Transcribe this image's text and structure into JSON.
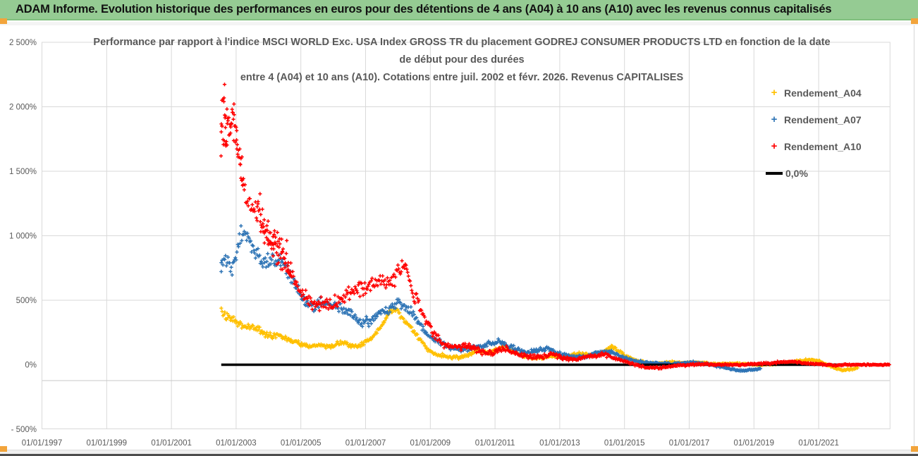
{
  "header": {
    "title": "ADAM Informe. Evolution historique des performances en euros pour des détentions de 4 ans (A04) à 10 ans (A10) avec les revenus connus capitalisés"
  },
  "colors": {
    "banner_green": "#95CB93",
    "grid": "#D9D9D9",
    "axis_extra_line": "#C8C8C8",
    "text_gray": "#595959",
    "accent_orange": "#F2A43B",
    "series_a04": "#FFC000",
    "series_a07": "#2E74B5",
    "series_a10": "#FF0000",
    "zero_line": "#000000"
  },
  "chart_data": {
    "type": "scatter",
    "title_line1": "Performance par rapport à l'indice MSCI WORLD Exc. USA Index GROSS TR  du placement GODREJ CONSUMER PRODUCTS LTD en fonction de la date",
    "title_line2": "de début pour des durées",
    "title_line3": "entre 4 (A04) et 10 ans (A10). Cotations entre juil. 2002 et févr. 2026. Revenus CAPITALISES",
    "x_axis": {
      "tick_years": [
        1997,
        1999,
        2001,
        2003,
        2005,
        2007,
        2009,
        2011,
        2013,
        2015,
        2017,
        2019,
        2021
      ],
      "tick_labels": [
        "01/01/1997",
        "01/01/1999",
        "01/01/2001",
        "01/01/2003",
        "01/01/2005",
        "01/01/2007",
        "01/01/2009",
        "01/01/2011",
        "01/01/2013",
        "01/01/2015",
        "01/01/2017",
        "01/01/2019",
        "01/01/2021"
      ],
      "min_year": 1997,
      "max_year": 2023.3,
      "grid": true
    },
    "y_axis": {
      "tick_values": [
        2500,
        2000,
        1500,
        1000,
        500,
        0,
        -500
      ],
      "tick_labels": [
        "2 500%",
        "2 000%",
        "1 500%",
        "1 000%",
        "500%",
        "0%",
        "- 500%"
      ],
      "min": -500,
      "max": 2500,
      "grid": true
    },
    "legend_position": "top-right",
    "zero_line": {
      "label": "0,0%",
      "value": 0,
      "x_start": 2002.54,
      "x_end": 2023.2
    },
    "series": [
      {
        "name": "Rendement_A04",
        "color": "#FFC000",
        "marker": "+",
        "keypoints": [
          [
            2002.54,
            430,
            45
          ],
          [
            2002.65,
            400,
            40
          ],
          [
            2002.8,
            370,
            35
          ],
          [
            2002.95,
            340,
            35
          ],
          [
            2003.1,
            310,
            30
          ],
          [
            2003.3,
            290,
            30
          ],
          [
            2003.5,
            300,
            30
          ],
          [
            2003.7,
            270,
            28
          ],
          [
            2003.9,
            240,
            26
          ],
          [
            2004.1,
            225,
            24
          ],
          [
            2004.3,
            230,
            24
          ],
          [
            2004.5,
            210,
            22
          ],
          [
            2004.7,
            190,
            22
          ],
          [
            2004.9,
            170,
            20
          ],
          [
            2005.1,
            150,
            18
          ],
          [
            2005.3,
            140,
            18
          ],
          [
            2005.5,
            150,
            18
          ],
          [
            2005.7,
            145,
            18
          ],
          [
            2005.9,
            135,
            16
          ],
          [
            2006.1,
            160,
            18
          ],
          [
            2006.3,
            180,
            18
          ],
          [
            2006.5,
            150,
            16
          ],
          [
            2006.7,
            140,
            16
          ],
          [
            2006.9,
            160,
            18
          ],
          [
            2007.1,
            200,
            20
          ],
          [
            2007.3,
            240,
            22
          ],
          [
            2007.5,
            300,
            25
          ],
          [
            2007.7,
            380,
            30
          ],
          [
            2007.85,
            430,
            30
          ],
          [
            2008.0,
            420,
            30
          ],
          [
            2008.2,
            350,
            28
          ],
          [
            2008.4,
            290,
            26
          ],
          [
            2008.6,
            220,
            24
          ],
          [
            2008.8,
            150,
            20
          ],
          [
            2009.0,
            100,
            18
          ],
          [
            2009.3,
            75,
            15
          ],
          [
            2009.6,
            60,
            14
          ],
          [
            2009.9,
            55,
            13
          ],
          [
            2010.2,
            80,
            14
          ],
          [
            2010.5,
            110,
            15
          ],
          [
            2010.8,
            90,
            14
          ],
          [
            2011.1,
            120,
            15
          ],
          [
            2011.3,
            140,
            15
          ],
          [
            2011.6,
            95,
            13
          ],
          [
            2011.9,
            65,
            12
          ],
          [
            2012.2,
            50,
            11
          ],
          [
            2012.5,
            55,
            11
          ],
          [
            2012.8,
            70,
            12
          ],
          [
            2013.1,
            60,
            11
          ],
          [
            2013.4,
            75,
            12
          ],
          [
            2013.7,
            90,
            12
          ],
          [
            2014.0,
            75,
            11
          ],
          [
            2014.3,
            95,
            12
          ],
          [
            2014.6,
            140,
            14
          ],
          [
            2014.8,
            110,
            12
          ],
          [
            2015.1,
            60,
            10
          ],
          [
            2015.4,
            30,
            9
          ],
          [
            2015.7,
            15,
            8
          ],
          [
            2016.0,
            10,
            8
          ],
          [
            2016.4,
            20,
            8
          ],
          [
            2016.8,
            15,
            7
          ],
          [
            2017.2,
            20,
            7
          ],
          [
            2017.6,
            10,
            7
          ],
          [
            2018.0,
            5,
            7
          ],
          [
            2018.4,
            10,
            7
          ],
          [
            2018.8,
            5,
            6
          ],
          [
            2019.2,
            0,
            6
          ],
          [
            2019.6,
            5,
            6
          ],
          [
            2020.0,
            15,
            7
          ],
          [
            2020.4,
            30,
            8
          ],
          [
            2020.8,
            40,
            8
          ],
          [
            2021.1,
            20,
            7
          ],
          [
            2021.4,
            -15,
            7
          ],
          [
            2021.7,
            -40,
            8
          ],
          [
            2022.0,
            -35,
            7
          ],
          [
            2022.2,
            -25,
            6
          ]
        ]
      },
      {
        "name": "Rendement_A07",
        "color": "#2E74B5",
        "marker": "+",
        "keypoints": [
          [
            2002.54,
            820,
            90
          ],
          [
            2002.7,
            780,
            70
          ],
          [
            2002.85,
            730,
            60
          ],
          [
            2003.0,
            870,
            80
          ],
          [
            2003.15,
            1000,
            60
          ],
          [
            2003.25,
            1030,
            50
          ],
          [
            2003.4,
            950,
            60
          ],
          [
            2003.55,
            900,
            60
          ],
          [
            2003.7,
            850,
            60
          ],
          [
            2003.85,
            800,
            60
          ],
          [
            2004.0,
            790,
            60
          ],
          [
            2004.15,
            820,
            60
          ],
          [
            2004.3,
            800,
            60
          ],
          [
            2004.5,
            760,
            60
          ],
          [
            2004.65,
            700,
            50
          ],
          [
            2004.8,
            640,
            50
          ],
          [
            2005.0,
            540,
            45
          ],
          [
            2005.2,
            470,
            40
          ],
          [
            2005.4,
            450,
            40
          ],
          [
            2005.6,
            470,
            40
          ],
          [
            2005.8,
            480,
            40
          ],
          [
            2006.0,
            460,
            40
          ],
          [
            2006.2,
            440,
            40
          ],
          [
            2006.45,
            410,
            40
          ],
          [
            2006.7,
            360,
            35
          ],
          [
            2006.9,
            330,
            35
          ],
          [
            2007.1,
            340,
            35
          ],
          [
            2007.35,
            380,
            40
          ],
          [
            2007.6,
            420,
            40
          ],
          [
            2007.85,
            450,
            40
          ],
          [
            2008.05,
            480,
            40
          ],
          [
            2008.25,
            440,
            40
          ],
          [
            2008.5,
            380,
            35
          ],
          [
            2008.7,
            300,
            35
          ],
          [
            2008.9,
            240,
            30
          ],
          [
            2009.1,
            200,
            30
          ],
          [
            2009.4,
            160,
            25
          ],
          [
            2009.7,
            130,
            25
          ],
          [
            2010.0,
            120,
            22
          ],
          [
            2010.3,
            140,
            22
          ],
          [
            2010.6,
            150,
            22
          ],
          [
            2010.9,
            170,
            22
          ],
          [
            2011.15,
            185,
            22
          ],
          [
            2011.4,
            150,
            20
          ],
          [
            2011.7,
            115,
            20
          ],
          [
            2012.0,
            95,
            18
          ],
          [
            2012.3,
            110,
            18
          ],
          [
            2012.6,
            125,
            18
          ],
          [
            2012.9,
            95,
            16
          ],
          [
            2013.2,
            75,
            15
          ],
          [
            2013.5,
            60,
            14
          ],
          [
            2013.8,
            70,
            14
          ],
          [
            2014.1,
            85,
            15
          ],
          [
            2014.4,
            110,
            15
          ],
          [
            2014.7,
            90,
            14
          ],
          [
            2015.0,
            55,
            12
          ],
          [
            2015.3,
            30,
            10
          ],
          [
            2015.6,
            20,
            10
          ],
          [
            2015.9,
            15,
            9
          ],
          [
            2016.2,
            10,
            9
          ],
          [
            2016.5,
            5,
            8
          ],
          [
            2016.8,
            15,
            8
          ],
          [
            2017.1,
            20,
            8
          ],
          [
            2017.4,
            10,
            8
          ],
          [
            2017.7,
            0,
            8
          ],
          [
            2018.0,
            -20,
            8
          ],
          [
            2018.3,
            -35,
            8
          ],
          [
            2018.6,
            -45,
            8
          ],
          [
            2018.9,
            -40,
            8
          ],
          [
            2019.1,
            -35,
            7
          ],
          [
            2019.2,
            -30,
            6
          ]
        ]
      },
      {
        "name": "Rendement_A10",
        "color": "#FF0000",
        "marker": "+",
        "keypoints": [
          [
            2002.54,
            1800,
            250
          ],
          [
            2002.62,
            1900,
            220
          ],
          [
            2002.7,
            1850,
            180
          ],
          [
            2002.8,
            1800,
            150
          ],
          [
            2002.9,
            1880,
            120
          ],
          [
            2003.0,
            1800,
            150
          ],
          [
            2003.1,
            1600,
            120
          ],
          [
            2003.2,
            1450,
            100
          ],
          [
            2003.35,
            1270,
            60
          ],
          [
            2003.5,
            1220,
            70
          ],
          [
            2003.65,
            1180,
            90
          ],
          [
            2003.8,
            1100,
            120
          ],
          [
            2003.95,
            1000,
            100
          ],
          [
            2004.1,
            950,
            90
          ],
          [
            2004.3,
            880,
            110
          ],
          [
            2004.5,
            830,
            120
          ],
          [
            2004.7,
            700,
            90
          ],
          [
            2004.9,
            600,
            70
          ],
          [
            2005.1,
            520,
            60
          ],
          [
            2005.4,
            480,
            60
          ],
          [
            2005.7,
            470,
            50
          ],
          [
            2006.0,
            470,
            50
          ],
          [
            2006.3,
            520,
            50
          ],
          [
            2006.6,
            560,
            60
          ],
          [
            2006.9,
            600,
            60
          ],
          [
            2007.2,
            640,
            60
          ],
          [
            2007.5,
            660,
            60
          ],
          [
            2007.8,
            640,
            60
          ],
          [
            2008.0,
            700,
            70
          ],
          [
            2008.15,
            760,
            60
          ],
          [
            2008.3,
            700,
            60
          ],
          [
            2008.5,
            560,
            60
          ],
          [
            2008.7,
            430,
            50
          ],
          [
            2008.9,
            330,
            40
          ],
          [
            2009.1,
            240,
            40
          ],
          [
            2009.35,
            170,
            35
          ],
          [
            2009.6,
            140,
            30
          ],
          [
            2009.9,
            130,
            30
          ],
          [
            2010.2,
            150,
            30
          ],
          [
            2010.5,
            110,
            25
          ],
          [
            2010.8,
            90,
            25
          ],
          [
            2011.1,
            110,
            25
          ],
          [
            2011.35,
            130,
            25
          ],
          [
            2011.6,
            90,
            20
          ],
          [
            2011.9,
            70,
            20
          ],
          [
            2012.2,
            60,
            18
          ],
          [
            2012.5,
            65,
            18
          ],
          [
            2012.8,
            80,
            18
          ],
          [
            2013.1,
            50,
            15
          ],
          [
            2013.4,
            40,
            15
          ],
          [
            2013.7,
            55,
            15
          ],
          [
            2014.0,
            65,
            15
          ],
          [
            2014.3,
            85,
            18
          ],
          [
            2014.6,
            60,
            15
          ],
          [
            2014.9,
            35,
            12
          ],
          [
            2015.2,
            10,
            10
          ],
          [
            2015.5,
            -10,
            10
          ],
          [
            2015.8,
            -25,
            10
          ],
          [
            2016.1,
            -20,
            10
          ],
          [
            2016.4,
            -15,
            8
          ],
          [
            2016.7,
            -5,
            8
          ],
          [
            2017.0,
            0,
            8
          ],
          [
            2017.5,
            5,
            8
          ],
          [
            2018.0,
            0,
            7
          ],
          [
            2018.5,
            0,
            7
          ],
          [
            2019.0,
            5,
            7
          ],
          [
            2019.5,
            10,
            8
          ],
          [
            2019.8,
            20,
            8
          ],
          [
            2020.2,
            25,
            8
          ],
          [
            2020.6,
            10,
            7
          ],
          [
            2021.0,
            5,
            6
          ],
          [
            2021.5,
            -5,
            6
          ],
          [
            2022.0,
            0,
            5
          ],
          [
            2022.5,
            0,
            5
          ],
          [
            2023.0,
            0,
            5
          ],
          [
            2023.2,
            0,
            4
          ]
        ]
      }
    ]
  },
  "legend": {
    "items": [
      {
        "label": "Rendement_A04",
        "marker": "+",
        "color": "#FFC000"
      },
      {
        "label": "Rendement_A07",
        "marker": "+",
        "color": "#2E74B5"
      },
      {
        "label": "Rendement_A10",
        "marker": "+",
        "color": "#FF0000"
      },
      {
        "label": "0,0%",
        "marker": "line",
        "color": "#000000"
      }
    ]
  }
}
